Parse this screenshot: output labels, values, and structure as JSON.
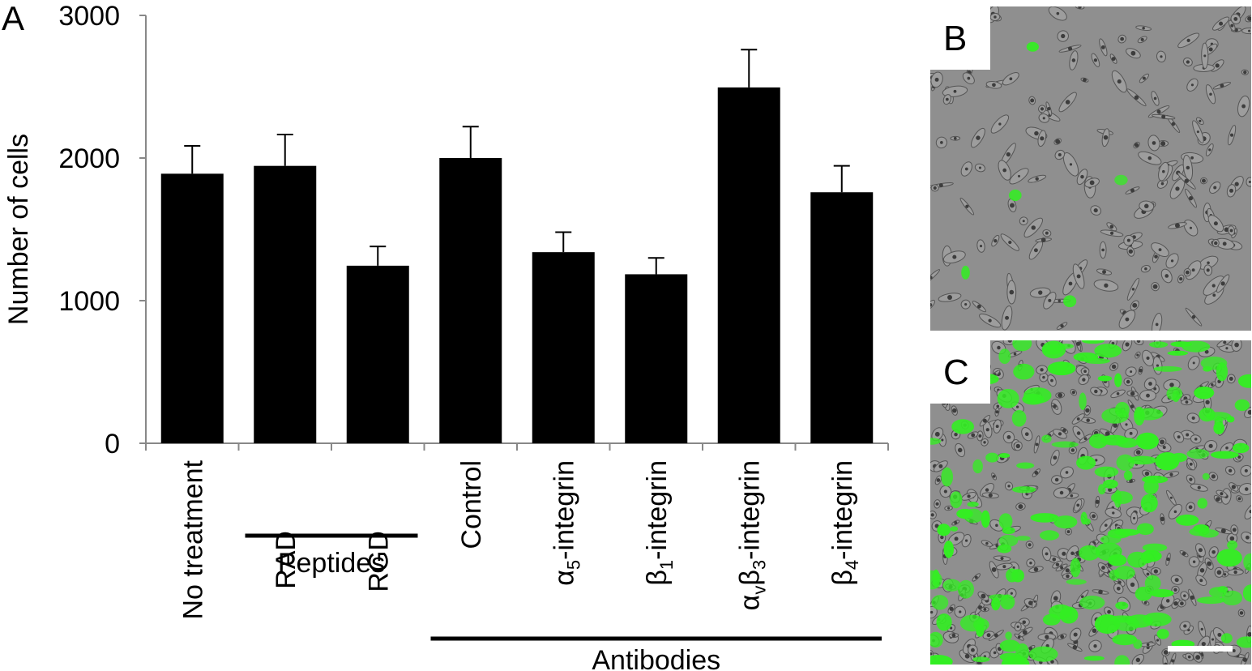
{
  "panel_labels": {
    "a": "A",
    "b": "B",
    "c": "C"
  },
  "colors": {
    "bar": "#000000",
    "axis": "#888888",
    "cell_background": "#8f8f8f",
    "cell_dark": "#555555",
    "fluorescence": "#33ee22"
  },
  "chart_data": {
    "type": "bar",
    "ylabel": "Number of cells",
    "ylim": [
      0,
      3000
    ],
    "yticks": [
      0,
      1000,
      2000,
      3000
    ],
    "error_bars": "one-sided, upward",
    "categories": [
      {
        "label": "No treatment"
      },
      {
        "label": "RAD"
      },
      {
        "label": "RGD"
      },
      {
        "label": "Control"
      },
      {
        "label": "integrin",
        "prefix": "α",
        "sub1": "5"
      },
      {
        "label": "integrin",
        "prefix": "β",
        "sub1": "1"
      },
      {
        "label": "integrin",
        "prefix": "α",
        "sub1": "v",
        "prefix2": "β",
        "sub2": "3"
      },
      {
        "label": "integrin",
        "prefix": "β",
        "sub1": "4"
      }
    ],
    "values": [
      1890,
      1945,
      1245,
      2000,
      1340,
      1185,
      2495,
      1760
    ],
    "errors": [
      195,
      220,
      135,
      220,
      140,
      115,
      265,
      185
    ],
    "groups": [
      {
        "label": "Peptides",
        "from": 1,
        "to": 2
      },
      {
        "label": "Antibodies",
        "from": 3,
        "to": 7
      }
    ]
  },
  "images": [
    {
      "label": "B",
      "density": "sparse",
      "green_fraction": 0.1
    },
    {
      "label": "C",
      "density": "dense",
      "green_fraction": 0.5
    }
  ]
}
